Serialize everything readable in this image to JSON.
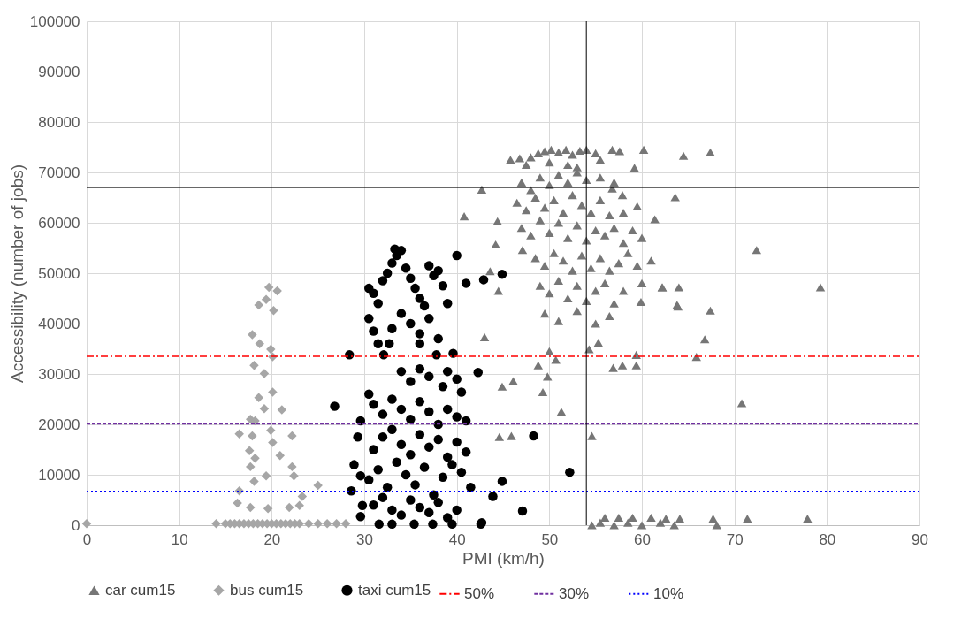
{
  "chart_data": {
    "type": "scatter",
    "xlabel": "PMI (km/h)",
    "ylabel": "Accessibility (number of jobs)",
    "xlim": [
      0,
      90
    ],
    "xticks": [
      0,
      10,
      20,
      30,
      40,
      50,
      60,
      70,
      80,
      90
    ],
    "ylim": [
      0,
      100000
    ],
    "yticks": [
      0,
      10000,
      20000,
      30000,
      40000,
      50000,
      60000,
      70000,
      80000,
      90000,
      100000
    ],
    "grid": true,
    "legend": "bottom",
    "series": [
      {
        "name": "car cum15",
        "color": "#767676",
        "marker": "triangle",
        "x": [
          45.8,
          46.8,
          48,
          48.8,
          49.5,
          50.2,
          51,
          51.8,
          52.5,
          53.3,
          54,
          55,
          56.8,
          57.6,
          60.2,
          64.5,
          67.4,
          47.5,
          50,
          52,
          53,
          55.5,
          59.2,
          42.7,
          56.8,
          57.9,
          59.5,
          61.4,
          63.6,
          44.4,
          44.2,
          47.1,
          43.6,
          44.5,
          43,
          40.8,
          62.2,
          63.8,
          59.9,
          47,
          48,
          49,
          50,
          51,
          52,
          53,
          54,
          55.5,
          57,
          46.5,
          47.5,
          48.5,
          49.5,
          50.5,
          51.5,
          52.5,
          53.5,
          54.5,
          55.5,
          56.5,
          58,
          47,
          48,
          49,
          50,
          51,
          52,
          53,
          54,
          55,
          56,
          57,
          58,
          59,
          60,
          48.5,
          49.5,
          50.5,
          51.5,
          52.5,
          53.5,
          54.5,
          55.5,
          56.5,
          57.5,
          58.5,
          59.5,
          61,
          49,
          50,
          51,
          52,
          53,
          54,
          55,
          56,
          57,
          58,
          60,
          49.5,
          51,
          53,
          55,
          56.5,
          48.8,
          50,
          50.7,
          44.9,
          46.1,
          49.8,
          49.3,
          51.3,
          44.6,
          45.9,
          54.6,
          54.3,
          55.3,
          56.9,
          57.9,
          59.4,
          59.4,
          54.6,
          55.5,
          56,
          57,
          57.5,
          58.5,
          59,
          60,
          61,
          62,
          62.6,
          63.5,
          64.1,
          67.7,
          68.1,
          71.4,
          77.9,
          72.4,
          62.2,
          64,
          79.3,
          63.9,
          67.4,
          66.8,
          65.9,
          70.8
        ],
        "values": [
          72500,
          72800,
          73000,
          73800,
          74200,
          74500,
          74000,
          74500,
          73500,
          74300,
          74500,
          73800,
          74500,
          74200,
          74500,
          73300,
          74000,
          71500,
          72000,
          71500,
          71000,
          72500,
          70900,
          66600,
          66800,
          65500,
          63300,
          60700,
          65100,
          60300,
          55700,
          54600,
          50400,
          46500,
          37300,
          61300,
          47200,
          43700,
          44300,
          68000,
          66500,
          69000,
          67500,
          69500,
          68000,
          70000,
          68500,
          69000,
          68000,
          64000,
          62500,
          65000,
          63000,
          64500,
          62000,
          65500,
          63500,
          62000,
          64500,
          61500,
          62000,
          59000,
          57500,
          60500,
          58000,
          60000,
          57000,
          59500,
          56500,
          58500,
          57500,
          59000,
          56000,
          58500,
          57000,
          53000,
          51500,
          54000,
          52500,
          50500,
          53500,
          51000,
          53000,
          50500,
          52000,
          54000,
          51500,
          52500,
          47500,
          46000,
          48500,
          45000,
          47500,
          44500,
          46500,
          48000,
          44000,
          46500,
          48000,
          42000,
          40500,
          42500,
          40000,
          41500,
          31700,
          34500,
          32800,
          27500,
          28600,
          29500,
          26400,
          22500,
          17500,
          17700,
          17700,
          34900,
          36200,
          31200,
          31700,
          33800,
          31700,
          0,
          500,
          1500,
          0,
          1500,
          500,
          1500,
          0,
          1500,
          500,
          1300,
          0,
          1300,
          1300,
          0,
          1300,
          1300,
          54600,
          47200,
          47200,
          47200,
          43400,
          42600,
          36900,
          33400,
          24200
        ]
      },
      {
        "name": "bus cum15",
        "color": "#a6a6a6",
        "marker": "diamond",
        "x": [
          19.7,
          20.6,
          18.6,
          19.4,
          20.2,
          17.9,
          18.7,
          19.9,
          20.1,
          18.1,
          19.2,
          20.1,
          18.6,
          19.2,
          21.1,
          17.7,
          18.2,
          16.5,
          17.9,
          19.9,
          22.2,
          20.1,
          17.6,
          18.2,
          20.9,
          17.7,
          22.2,
          19.4,
          22.4,
          18.1,
          16.5,
          25,
          23.3,
          16.3,
          17.7,
          19.6,
          21.9,
          23,
          14,
          15,
          15.5,
          16,
          16.5,
          17,
          17.5,
          18,
          18.5,
          19,
          19.5,
          20,
          20.5,
          21,
          21.5,
          22,
          22.5,
          23,
          24,
          25,
          26,
          27,
          28,
          0
        ],
        "values": [
          47200,
          46500,
          43700,
          44800,
          42600,
          37800,
          36000,
          34900,
          33400,
          31700,
          30100,
          26400,
          25300,
          23100,
          22900,
          21000,
          20700,
          18100,
          17700,
          18800,
          17700,
          16400,
          14800,
          13300,
          13800,
          11600,
          11600,
          9800,
          9800,
          8700,
          6800,
          7900,
          5700,
          4400,
          3500,
          3300,
          3500,
          3900,
          300,
          300,
          300,
          300,
          300,
          300,
          300,
          300,
          300,
          300,
          300,
          300,
          300,
          300,
          300,
          300,
          300,
          300,
          300,
          300,
          300,
          300,
          300,
          300
        ]
      },
      {
        "name": "taxi cum15",
        "color": "#000000",
        "marker": "circle",
        "x": [
          28.4,
          26.8,
          28.6,
          29.6,
          29.3,
          28.9,
          29.6,
          29.8,
          29.6,
          31.6,
          33,
          35.4,
          37.4,
          39.5,
          42.6,
          32.7,
          32.1,
          36,
          37.8,
          39.6,
          42.3,
          40.5,
          41,
          44.9,
          43.9,
          48.3,
          47.1,
          52.2,
          42.7,
          33.3,
          42.9,
          44.9,
          30.5,
          31,
          31.5,
          32,
          32.5,
          33,
          33.5,
          34,
          34.5,
          35,
          35.5,
          36,
          36.5,
          37,
          37.5,
          38,
          38.5,
          39,
          40,
          41,
          30.5,
          31,
          31.5,
          33,
          34,
          35,
          36,
          37,
          38,
          34,
          35,
          36,
          37,
          38.5,
          39,
          40,
          30.5,
          31,
          32,
          33,
          34,
          35,
          36,
          37,
          38,
          39,
          40,
          31,
          32,
          33,
          34,
          35,
          36,
          37,
          38,
          39,
          40,
          41,
          30.5,
          31.5,
          32.5,
          33.5,
          34.5,
          35.5,
          36.5,
          37.5,
          38.5,
          39.5,
          40.5,
          41.5,
          31,
          32,
          33,
          34,
          35,
          36,
          37,
          38,
          39,
          40
        ],
        "values": [
          33800,
          23600,
          6800,
          20700,
          17500,
          12000,
          9800,
          3900,
          1700,
          200,
          200,
          200,
          200,
          200,
          200,
          36000,
          33800,
          36000,
          33800,
          34100,
          30300,
          26400,
          20700,
          8700,
          5700,
          17700,
          2800,
          10500,
          500,
          54800,
          48700,
          49800,
          47000,
          46000,
          44000,
          48500,
          50000,
          52000,
          53500,
          54500,
          51000,
          49000,
          47000,
          45000,
          43500,
          51500,
          49500,
          50500,
          47500,
          44000,
          53500,
          48000,
          41000,
          38500,
          36000,
          39000,
          42000,
          40000,
          38000,
          41000,
          37000,
          30500,
          28500,
          31000,
          29500,
          27500,
          30500,
          29000,
          26000,
          24000,
          22000,
          25000,
          23000,
          21000,
          24500,
          22500,
          20000,
          23000,
          21500,
          15000,
          17500,
          19000,
          16000,
          14000,
          18000,
          15500,
          17000,
          13500,
          16500,
          14500,
          9000,
          11000,
          7500,
          12500,
          10000,
          8000,
          11500,
          6000,
          9500,
          12000,
          10500,
          7500,
          4000,
          5500,
          3000,
          2000,
          5000,
          3500,
          2500,
          4500,
          1500,
          3000
        ]
      },
      {
        "type": "line",
        "name": "50%",
        "color": "#ff0000",
        "line_style": "dashdot",
        "x": [
          0,
          90
        ],
        "values": [
          33500,
          33500
        ]
      },
      {
        "type": "line",
        "name": "30%",
        "color": "#7030a0",
        "line_style": "dashed",
        "x": [
          0,
          90
        ],
        "values": [
          20100,
          20100
        ]
      },
      {
        "type": "line",
        "name": "10%",
        "color": "#0000ff",
        "line_style": "dotted",
        "x": [
          0,
          90
        ],
        "values": [
          6700,
          6700
        ]
      }
    ],
    "ref_lines": [
      {
        "axis": "x",
        "value": 54,
        "color": "#000000",
        "line_style": "solid"
      },
      {
        "axis": "y",
        "value": 67000,
        "color": "#000000",
        "line_style": "solid"
      }
    ]
  }
}
